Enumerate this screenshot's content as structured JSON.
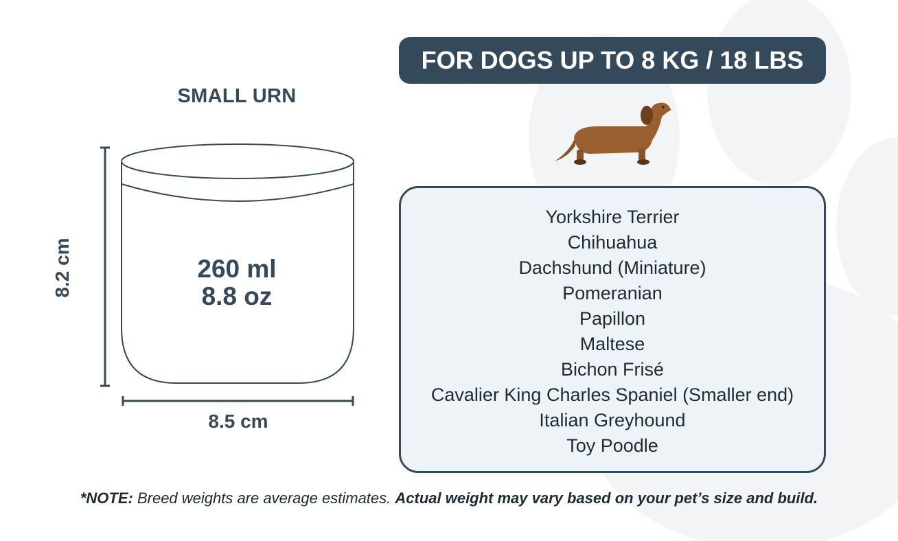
{
  "urn": {
    "title": "SMALL URN",
    "volume_ml": "260 ml",
    "volume_oz": "8.8 oz",
    "height": "8.2 cm",
    "width": "8.5 cm"
  },
  "header": {
    "title": "FOR DOGS UP TO 8 KG / 18 LBS"
  },
  "breeds": [
    "Yorkshire Terrier",
    "Chihuahua",
    "Dachshund (Miniature)",
    "Pomeranian",
    "Papillon",
    "Maltese",
    "Bichon Frisé",
    "Cavalier King Charles Spaniel (Smaller end)",
    "Italian Greyhound",
    "Toy Poodle"
  ],
  "note": {
    "prefix": "*NOTE:",
    "normal": " Breed weights are average estimates. ",
    "bold": "Actual weight may vary based on your pet’s size and build."
  },
  "colors": {
    "primary": "#34495a",
    "panel": "#eef3f8",
    "dog": "#9a5f2e",
    "paw": "#f3f4f6"
  },
  "icons": {
    "dog": "dachshund-illustration",
    "background": "paw-print"
  }
}
